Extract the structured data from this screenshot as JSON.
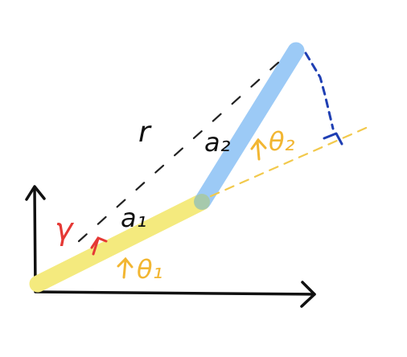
{
  "diagram": {
    "labels": {
      "r": "r",
      "a1": "a₁",
      "a2": "a₂",
      "gamma": "γ",
      "theta1": "θ₁",
      "theta2": "θ₂"
    },
    "colors": {
      "axes": "#111111",
      "link1": "#f4ea7e",
      "link2": "#9ccaf6",
      "angle_text": "#f2b632",
      "gamma": "#e53935",
      "reach_dashes": "#222222",
      "right_angle": "#1f3fb3"
    }
  }
}
